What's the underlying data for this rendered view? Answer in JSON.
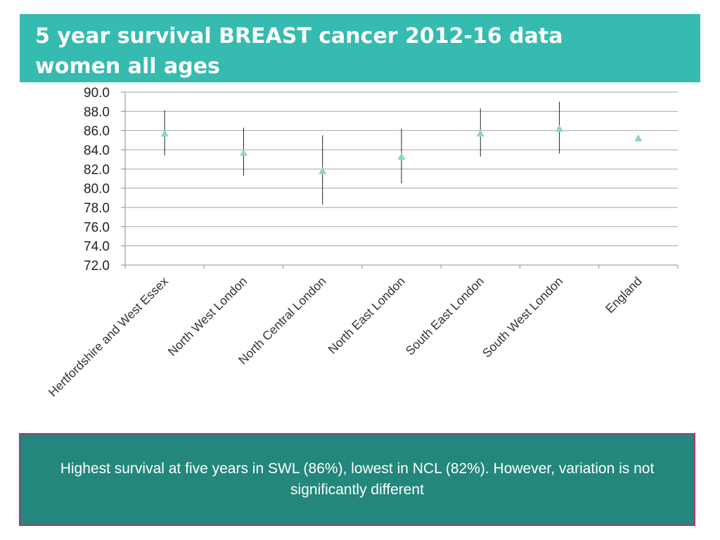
{
  "header": {
    "title_line1": "5 year survival BREAST cancer  2012-16 data",
    "title_line2": "women all ages"
  },
  "chart_data": {
    "type": "scatter",
    "categories": [
      "Hertfordshire and West Essex",
      "North West London",
      "North Central London",
      "North East London",
      "South East London",
      "South West London",
      "England"
    ],
    "values": [
      85.7,
      83.7,
      81.8,
      83.3,
      85.7,
      86.2,
      85.2
    ],
    "error_low": [
      83.4,
      81.3,
      78.3,
      80.5,
      83.3,
      83.6,
      85.0
    ],
    "error_high": [
      88.1,
      86.3,
      85.5,
      86.2,
      88.3,
      89.0,
      85.5
    ],
    "y_ticks": [
      "72.0",
      "74.0",
      "76.0",
      "78.0",
      "80.0",
      "82.0",
      "84.0",
      "86.0",
      "88.0",
      "90.0"
    ],
    "ylim": [
      72,
      90
    ],
    "grid": true,
    "marker": "triangle",
    "marker_color": "#8fd3c2",
    "errorbar_color": "#222222"
  },
  "note": {
    "text": "Highest survival at five years in SWL (86%), lowest in NCL (82%). However, variation is not significantly different"
  },
  "colors": {
    "title_bg": "#35bbb0",
    "note_bg": "#23877d",
    "note_border": "#b0307a"
  }
}
